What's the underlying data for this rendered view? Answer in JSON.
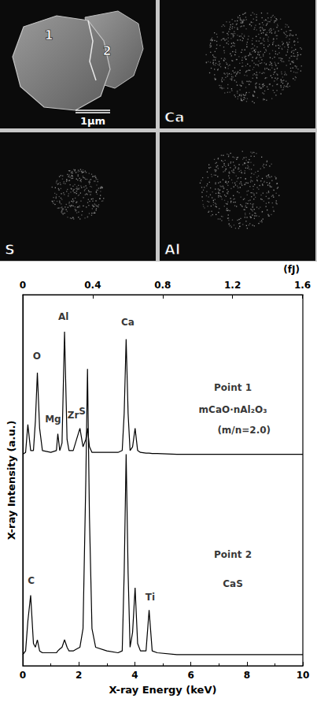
{
  "images": [
    {
      "markers": [
        "1",
        "2"
      ],
      "scale_bar": "1μm"
    },
    {
      "label": "Ca"
    },
    {
      "label": "S"
    },
    {
      "label": "Al"
    }
  ],
  "chart_data": {
    "type": "line",
    "x_label": "X-ray Energy (keV)",
    "y_label": "X-ray Intensity (a.u.)",
    "x2_label": "(fJ)",
    "xlim": [
      0,
      10
    ],
    "xticks": [
      0,
      2,
      4,
      6,
      8,
      10
    ],
    "x2lim": [
      0,
      1.6022
    ],
    "x2ticks": [
      0,
      0.4,
      0.8,
      1.2,
      1.6
    ],
    "ylim": [
      0,
      100
    ],
    "tick_labels": "x",
    "grid": false,
    "x": [
      0,
      0.1,
      0.18,
      0.28,
      0.38,
      0.45,
      0.52,
      0.6,
      0.7,
      1.0,
      1.2,
      1.25,
      1.32,
      1.4,
      1.49,
      1.58,
      1.65,
      1.8,
      1.92,
      2.04,
      2.15,
      2.25,
      2.31,
      2.38,
      2.47,
      2.6,
      3.0,
      3.4,
      3.55,
      3.62,
      3.69,
      3.76,
      3.83,
      3.92,
      4.01,
      4.1,
      4.2,
      4.4,
      4.51,
      4.62,
      4.8,
      5.5,
      7,
      8.5,
      10
    ],
    "series": [
      {
        "name": "Point 1",
        "color": "#000000",
        "values": [
          57,
          57.5,
          65,
          58,
          58,
          66,
          79,
          64,
          58,
          57.5,
          58,
          62.5,
          58,
          60,
          90,
          61,
          58,
          58,
          61,
          64,
          59,
          61,
          64,
          59,
          57.5,
          57.5,
          57.5,
          57.5,
          58,
          68,
          88,
          68,
          58,
          59,
          64,
          58,
          57.5,
          57.3,
          57.3,
          57.2,
          57.2,
          57,
          57,
          57,
          57
        ]
      },
      {
        "name": "Point 2",
        "color": "#000000",
        "values": [
          3,
          4,
          12,
          19,
          6,
          5,
          7,
          4,
          3.5,
          3.5,
          3.5,
          4,
          4.5,
          5,
          7,
          5,
          4,
          4,
          4.5,
          5,
          10,
          50,
          80,
          40,
          10,
          5,
          4,
          3.5,
          4,
          25,
          57,
          25,
          5,
          9,
          21,
          6,
          4,
          4,
          15,
          4,
          3.5,
          3,
          3,
          3,
          3
        ]
      }
    ],
    "annotations": [
      {
        "text": "O",
        "x": 0.5,
        "y": 83.5
      },
      {
        "text": "Mg",
        "x": 1.08,
        "y": 66.5
      },
      {
        "text": "Al",
        "x": 1.45,
        "y": 94
      },
      {
        "text": "Zr",
        "x": 1.8,
        "y": 67.5
      },
      {
        "text": "S",
        "x": 2.12,
        "y": 68.5
      },
      {
        "text": "Ca",
        "x": 3.75,
        "y": 92.5
      },
      {
        "text": "C",
        "x": 0.3,
        "y": 23
      },
      {
        "text": "Ti",
        "x": 4.55,
        "y": 18.5
      },
      {
        "text": "Point 1",
        "x": 7.5,
        "y": 75
      },
      {
        "text": "mCaO·nAl₂O₃",
        "x": 7.5,
        "y": 69
      },
      {
        "text": "(m/n=2.0)",
        "x": 7.9,
        "y": 63.5
      },
      {
        "text": "Point 2",
        "x": 7.5,
        "y": 30
      },
      {
        "text": "CaS",
        "x": 7.5,
        "y": 22
      }
    ]
  }
}
